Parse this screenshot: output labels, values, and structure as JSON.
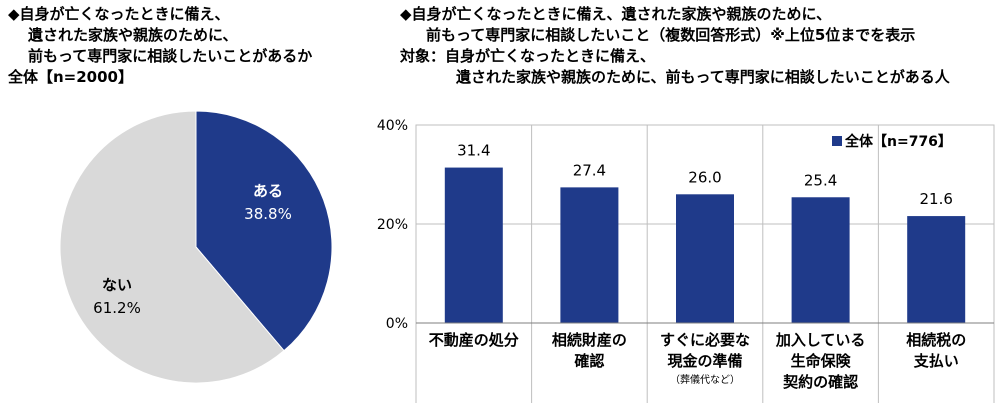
{
  "left_panel": {
    "title_lines": [
      "◆自身が亡くなったときに備え、",
      "遺された家族や親族のために、",
      "前もって専門家に相談したいことがあるか",
      "全体【n=2000】"
    ]
  },
  "right_panel": {
    "title_lines": [
      "◆自身が亡くなったときに備え、遺された家族や親族のために、",
      "前もって専門家に相談したいこと（複数回答形式）※上位5位までを表示",
      "対象：自身が亡くなったときに備え、",
      "遺された家族や親族のために、前もって専門家に相談したいことがある人"
    ]
  },
  "chart_data": [
    {
      "type": "pie",
      "slices": [
        {
          "label": "ある",
          "value": 38.8,
          "value_label": "38.8%",
          "color": "#1f3a8a"
        },
        {
          "label": "ない",
          "value": 61.2,
          "value_label": "61.2%",
          "color": "#d9d9d9"
        }
      ]
    },
    {
      "type": "bar",
      "categories": [
        {
          "lines": [
            "不動産の処分"
          ],
          "note": ""
        },
        {
          "lines": [
            "相続財産の",
            "確認"
          ],
          "note": ""
        },
        {
          "lines": [
            "すぐに必要な",
            "現金の準備"
          ],
          "note": "（葬儀代など）"
        },
        {
          "lines": [
            "加入している",
            "生命保険",
            "契約の確認"
          ],
          "note": ""
        },
        {
          "lines": [
            "相続税の",
            "支払い"
          ],
          "note": ""
        }
      ],
      "series": [
        {
          "name": "全体【n=776】",
          "values": [
            31.4,
            27.4,
            26.0,
            25.4,
            21.6
          ],
          "color": "#1f3a8a"
        }
      ],
      "ylim": [
        0,
        40
      ],
      "yticks": [
        "0%",
        "20%",
        "40%"
      ],
      "legend": "top-right",
      "grid": true
    }
  ]
}
